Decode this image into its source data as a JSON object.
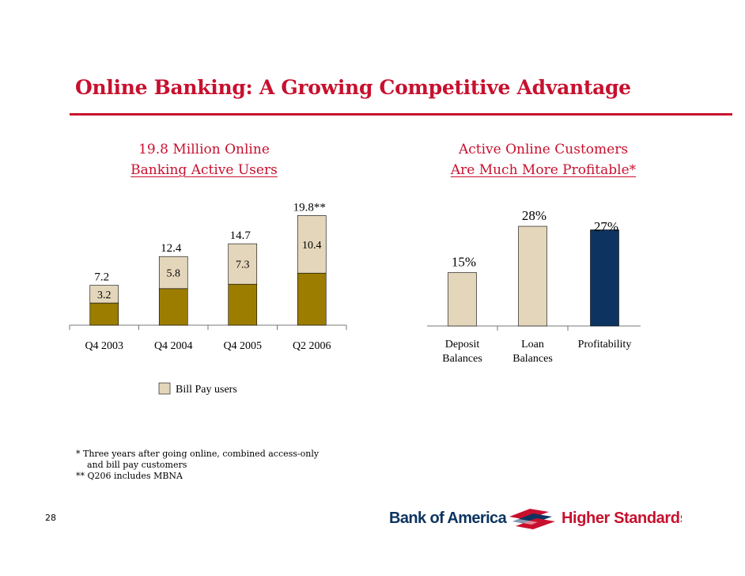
{
  "title": "Online Banking: A Growing Competitive Advantage",
  "left_chart": {
    "title_line1": "19.8 Million Online",
    "title_line2": "Banking Active Users",
    "legend_label": "Bill Pay users"
  },
  "right_chart": {
    "title_line1": "Active Online Customers",
    "title_line2": "Are Much More Profitable*"
  },
  "footnotes": [
    "*  Three years after going online, combined access-only",
    "    and bill pay customers",
    "** Q206 includes MBNA"
  ],
  "page_number": "28",
  "logo": {
    "brand": "Bank of America",
    "tagline": "Higher Standards"
  },
  "colors": {
    "brand_red": "#c8102e",
    "bill_pay": "#e3d6bb",
    "other_users": "#9c7d00",
    "profitability": "#0d3460"
  },
  "chart_data": [
    {
      "type": "bar",
      "stacked": true,
      "title": "19.8 Million Online Banking Active Users",
      "categories": [
        "Q4 2003",
        "Q4 2004",
        "Q4 2005",
        "Q2 2006"
      ],
      "totals": [
        7.2,
        12.4,
        14.7,
        19.8
      ],
      "total_labels": [
        "7.2",
        "12.4",
        "14.7",
        "19.8**"
      ],
      "series": [
        {
          "name": "",
          "values": [
            4.0,
            6.6,
            7.4,
            9.4
          ],
          "color": "#9c7d00"
        },
        {
          "name": "Bill Pay users",
          "values": [
            3.2,
            5.8,
            7.3,
            10.4
          ],
          "value_labels": [
            "3.2",
            "5.8",
            "7.3",
            "10.4"
          ],
          "color": "#e3d6bb"
        }
      ],
      "legend": "bottom",
      "grid": false
    },
    {
      "type": "bar",
      "title": "Active Online Customers Are Much More Profitable*",
      "categories": [
        [
          "Deposit",
          "Balances"
        ],
        [
          "Loan",
          "Balances"
        ],
        [
          "Profitability"
        ]
      ],
      "values": [
        15,
        28,
        27
      ],
      "value_labels": [
        "15%",
        "28%",
        "27%"
      ],
      "colors": [
        "#e3d6bb",
        "#e3d6bb",
        "#0d3460"
      ],
      "grid": false
    }
  ]
}
